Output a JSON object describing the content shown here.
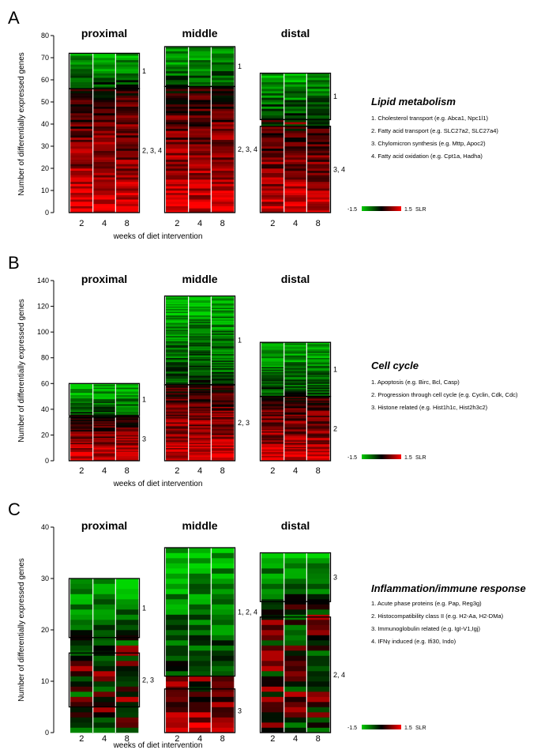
{
  "panels": [
    {
      "letter": "A",
      "y_axis_label": "Number of differentially expressed genes",
      "x_axis_label": "weeks of diet intervention",
      "y_ticks": [
        0,
        10,
        20,
        30,
        40,
        50,
        60,
        70,
        80
      ],
      "section_titles": [
        "proximal",
        "middle",
        "distal"
      ],
      "week_labels": [
        "2",
        "4",
        "8"
      ],
      "segment": {
        "proximal": "proximal",
        "middle": "middle",
        "distal": "distal"
      },
      "heading": "Lipid metabolism",
      "items": [
        "1.  Cholesterol transport (e.g. Abca1, Npc1l1)",
        "2.  Fatty acid  transport (e.g. SLC27a2, SLC27a4)",
        "3.  Chylomicron synthesis (e.g. Mttp, Apoc2)",
        "4.  Fatty acid oxidation (e.g. Cpt1a, Hadha)"
      ],
      "colorbar": {
        "min_label": "-1.5",
        "max_label": "1.5",
        "unit": "SLR"
      }
    },
    {
      "letter": "B",
      "y_axis_label": "Number of differentially expressed genes",
      "x_axis_label": "weeks of diet intervention",
      "y_ticks": [
        0,
        20,
        40,
        60,
        80,
        100,
        120,
        140
      ],
      "section_titles": [
        "proximal",
        "middle",
        "distal"
      ],
      "week_labels": [
        "2",
        "4",
        "8"
      ],
      "heading": "Cell cycle",
      "items": [
        "1. Apoptosis (e.g. Birc, Bcl, Casp)",
        "2. Progression through cell cycle (e.g. Cyclin, Cdk, Cdc)",
        "3. Histone related (e.g. Hist1h1c, Hist2h3c2)"
      ],
      "colorbar": {
        "min_label": "-1.5",
        "max_label": "1.5",
        "unit": "SLR"
      }
    },
    {
      "letter": "C",
      "y_axis_label": "Number of differentially expressed genes",
      "x_axis_label": "weeks of diet intervention",
      "y_ticks": [
        0,
        10,
        20,
        30,
        40
      ],
      "section_titles": [
        "proximal",
        "middle",
        "distal"
      ],
      "week_labels": [
        "2",
        "4",
        "8"
      ],
      "heading": "Inflammation/immune response",
      "items": [
        "1. Acute phase proteins (e.g. Pap, Reg3g)",
        "2. Histocompatibility class II (e.g. H2-Aa, H2-DMa)",
        "3. Immunoglobulin related (e.g. IgI-V1,Igj)",
        "4. IFNγ induced (e.g. Ifi30, Indo)"
      ],
      "colorbar": {
        "min_label": "-1.5",
        "max_label": "1.5",
        "unit": "SLR"
      }
    }
  ],
  "chart_data": [
    {
      "type": "heatmap",
      "panel": "A",
      "ylabel": "Number of differentially expressed genes",
      "xlabel": "weeks of diet intervention",
      "ylim": [
        0,
        80
      ],
      "x": [
        "2",
        "4",
        "8"
      ],
      "color_scale": {
        "min": -1.5,
        "max": 1.5,
        "unit": "SLR",
        "low_color": "#00cc00",
        "mid_color": "#000000",
        "high_color": "#ff0000"
      },
      "sections": [
        {
          "name": "proximal",
          "total_genes": 72,
          "clusters": [
            {
              "label": "1",
              "from": 56,
              "to": 72,
              "tone": "green"
            },
            {
              "label": "2, 3, 4",
              "from": 0,
              "to": 56,
              "tone": "red"
            }
          ]
        },
        {
          "name": "middle",
          "total_genes": 75,
          "clusters": [
            {
              "label": "1",
              "from": 57,
              "to": 75,
              "tone": "green"
            },
            {
              "label": "2, 3, 4",
              "from": 0,
              "to": 57,
              "tone": "red"
            }
          ]
        },
        {
          "name": "distal",
          "total_genes": 63,
          "clusters": [
            {
              "label": "1",
              "from": 42,
              "to": 63,
              "tone": "green"
            },
            {
              "label": "3, 4",
              "from": 0,
              "to": 39,
              "tone": "red"
            }
          ]
        }
      ]
    },
    {
      "type": "heatmap",
      "panel": "B",
      "ylabel": "Number of differentially expressed genes",
      "xlabel": "weeks of diet intervention",
      "ylim": [
        0,
        140
      ],
      "x": [
        "2",
        "4",
        "8"
      ],
      "color_scale": {
        "min": -1.5,
        "max": 1.5,
        "unit": "SLR",
        "low_color": "#00cc00",
        "mid_color": "#000000",
        "high_color": "#ff0000"
      },
      "sections": [
        {
          "name": "proximal",
          "total_genes": 60,
          "clusters": [
            {
              "label": "1",
              "from": 35,
              "to": 60,
              "tone": "green"
            },
            {
              "label": "3",
              "from": 0,
              "to": 34,
              "tone": "red"
            }
          ]
        },
        {
          "name": "middle",
          "total_genes": 128,
          "clusters": [
            {
              "label": "1",
              "from": 59,
              "to": 128,
              "tone": "green"
            },
            {
              "label": "2, 3",
              "from": 0,
              "to": 59,
              "tone": "red"
            }
          ]
        },
        {
          "name": "distal",
          "total_genes": 92,
          "clusters": [
            {
              "label": "1",
              "from": 50,
              "to": 92,
              "tone": "green"
            },
            {
              "label": "2",
              "from": 0,
              "to": 50,
              "tone": "red"
            }
          ]
        }
      ]
    },
    {
      "type": "heatmap",
      "panel": "C",
      "ylabel": "Number of differentially expressed genes",
      "xlabel": "weeks of diet intervention",
      "ylim": [
        0,
        40
      ],
      "x": [
        "2",
        "4",
        "8"
      ],
      "color_scale": {
        "min": -1.5,
        "max": 1.5,
        "unit": "SLR",
        "low_color": "#00cc00",
        "mid_color": "#000000",
        "high_color": "#ff0000"
      },
      "sections": [
        {
          "name": "proximal",
          "total_genes": 30,
          "clusters": [
            {
              "label": "1",
              "from": 18.5,
              "to": 30,
              "tone": "green"
            },
            {
              "label": "2, 3",
              "from": 5,
              "to": 15.5,
              "tone": "mixed"
            }
          ]
        },
        {
          "name": "middle",
          "total_genes": 36,
          "clusters": [
            {
              "label": "1, 2, 4",
              "from": 11,
              "to": 36,
              "tone": "green"
            },
            {
              "label": "3",
              "from": 0,
              "to": 8.5,
              "tone": "red"
            }
          ]
        },
        {
          "name": "distal",
          "total_genes": 35,
          "clusters": [
            {
              "label": "3",
              "from": 25.5,
              "to": 35,
              "tone": "green"
            },
            {
              "label": "2, 4",
              "from": 0,
              "to": 22.5,
              "tone": "mixed"
            }
          ]
        }
      ]
    }
  ]
}
